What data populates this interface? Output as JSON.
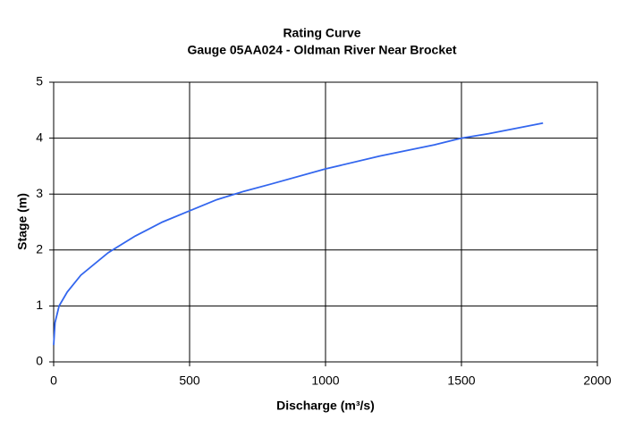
{
  "chart_data": {
    "type": "line",
    "title": "Rating Curve",
    "subtitle": "Gauge 05AA024 - Oldman River Near Brocket",
    "x_label": "Discharge (m³/s)",
    "y_label": "Stage (m)",
    "x": [
      0,
      5,
      20,
      50,
      100,
      200,
      300,
      400,
      500,
      600,
      700,
      800,
      1000,
      1200,
      1400,
      1500,
      1600,
      1800
    ],
    "series": [
      {
        "name": "Rating Curve",
        "color": "#3366ee",
        "values": [
          0.3,
          0.7,
          1.0,
          1.25,
          1.55,
          1.95,
          2.25,
          2.5,
          2.7,
          2.9,
          3.05,
          3.18,
          3.45,
          3.68,
          3.88,
          4.0,
          4.08,
          4.27
        ]
      }
    ],
    "xlim": [
      0,
      2000
    ],
    "xticks": [
      0,
      500,
      1000,
      1500,
      2000
    ],
    "ylim": [
      0,
      5
    ],
    "yticks": [
      0,
      1,
      2,
      3,
      4,
      5
    ],
    "grid": true
  }
}
